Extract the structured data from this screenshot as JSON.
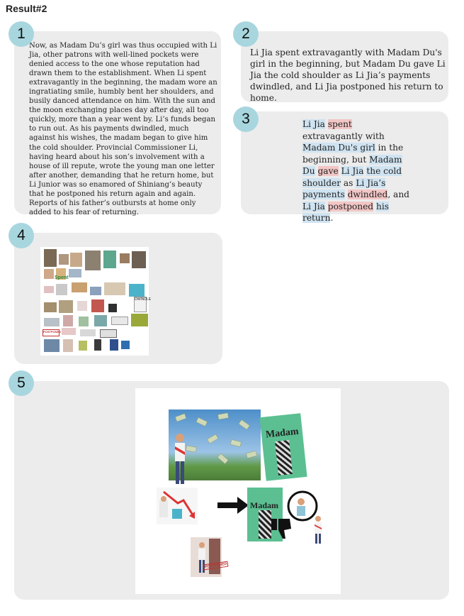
{
  "header": "Result#2",
  "panels": [
    {
      "number": "1"
    },
    {
      "number": "2"
    },
    {
      "number": "3"
    },
    {
      "number": "4"
    },
    {
      "number": "5"
    }
  ],
  "passage": "Now, as Madam Du’s girl was thus occupied with Li Jia, other patrons with well-lined pockets were denied access to the one whose reputation had drawn them to the establishment. When Li spent extravagantly in the beginning, the madam wore an ingratiating smile, humbly bent her shoulders, and busily danced attendance on him. With the sun and the moon exchanging places day after day, all too quickly, more than a year went by. Li’s funds began to run out. As his payments dwindled, much against his wishes, the madam began to give him the cold shoulder. Provincial Commissioner Li, having heard about his son’s involvement with a house of ill repute, wrote the young man one letter after another, demanding that he return home, but Li Junior was so enamored of Shiniang’s beauty that he postponed his return again and again. Reports of his father’s outbursts at home only added to his fear of returning.",
  "summary": "Li Jia spent extravagantly with Madam Du's girl in the beginning, but Madam Du gave Li Jia the cold shoulder as Li Jia’s payments dwindled, and Li Jia postponed his return to home.",
  "highlighted": [
    {
      "t": "Li Jia",
      "c": "b"
    },
    {
      "t": " ",
      "c": ""
    },
    {
      "t": "spent",
      "c": "r"
    },
    {
      "t": " extravagantly with ",
      "c": ""
    },
    {
      "t": "Madam Du's girl",
      "c": "b"
    },
    {
      "t": " in the beginning, but ",
      "c": ""
    },
    {
      "t": "Madam Du",
      "c": "b"
    },
    {
      "t": " ",
      "c": ""
    },
    {
      "t": "gave",
      "c": "r"
    },
    {
      "t": " ",
      "c": ""
    },
    {
      "t": "Li Jia",
      "c": "b"
    },
    {
      "t": " ",
      "c": ""
    },
    {
      "t": "the cold shoulder",
      "c": "b"
    },
    {
      "t": " as ",
      "c": ""
    },
    {
      "t": "Li Jia’s payments",
      "c": "b"
    },
    {
      "t": " ",
      "c": ""
    },
    {
      "t": "dwindled",
      "c": "r"
    },
    {
      "t": ", and ",
      "c": ""
    },
    {
      "t": "Li Jia",
      "c": "b"
    },
    {
      "t": " ",
      "c": ""
    },
    {
      "t": "postponed",
      "c": "r"
    },
    {
      "t": " ",
      "c": ""
    },
    {
      "t": "his return",
      "c": "b"
    },
    {
      "t": ".",
      "c": ""
    }
  ],
  "collage_small": {
    "spent_label": "Spent",
    "dwindle_label": "DWINDLE",
    "postponed_label": "POSTPONED"
  },
  "collage_large": {
    "madam_label_1": "Madam",
    "madam_label_2": "Madam",
    "postponed_label": "POSTPONED"
  }
}
